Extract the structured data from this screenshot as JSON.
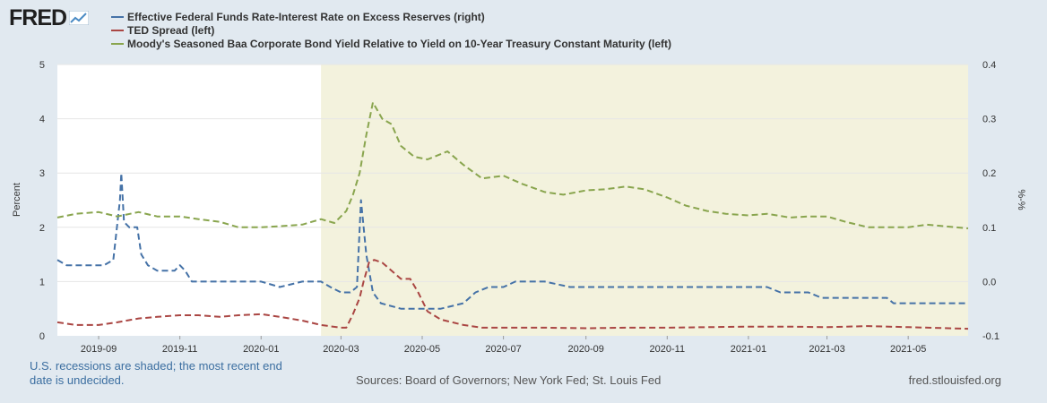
{
  "header": {
    "logo_text": "FRED",
    "logo_icon": "trend-graph-icon"
  },
  "legend": [
    {
      "label": "Effective Federal Funds Rate-Interest Rate on Excess Reserves (right)",
      "color": "#4572a7"
    },
    {
      "label": "TED Spread (left)",
      "color": "#aa4643"
    },
    {
      "label": "Moody's Seasoned Baa Corporate Bond Yield Relative to Yield on 10-Year Treasury Constant Maturity (left)",
      "color": "#89a54e"
    }
  ],
  "footer": {
    "recession_note": "U.S. recessions are shaded; the most recent end date is undecided.",
    "sources": "Sources: Board of Governors; New York Fed; St. Louis Fed",
    "site": "fred.stlouisfed.org"
  },
  "chart_data": {
    "type": "line",
    "x_start": "2019-08-01",
    "x_end": "2021-06-15",
    "x_ticks": [
      "2019-09",
      "2019-11",
      "2020-01",
      "2020-03",
      "2020-05",
      "2020-07",
      "2020-09",
      "2020-11",
      "2021-01",
      "2021-03",
      "2021-05"
    ],
    "left_axis": {
      "label": "Percent",
      "ticks": [
        "0",
        "1",
        "2",
        "3",
        "4",
        "5"
      ],
      "ylim": [
        0,
        5
      ]
    },
    "right_axis": {
      "label": "%-%",
      "ticks": [
        "-0.1",
        "0.0",
        "0.1",
        "0.2",
        "0.3",
        "0.4"
      ],
      "ylim": [
        -0.1,
        0.4
      ]
    },
    "grid": true,
    "recession": {
      "start": "2020-02-15",
      "end": "2021-06-15",
      "color": "#f3f2dd"
    },
    "series": [
      {
        "name": "Effective Federal Funds Rate-Interest Rate on Excess Reserves",
        "axis": "right",
        "color": "#4572a7",
        "points": [
          [
            "2019-08-01",
            0.04
          ],
          [
            "2019-08-08",
            0.03
          ],
          [
            "2019-08-15",
            0.03
          ],
          [
            "2019-08-22",
            0.03
          ],
          [
            "2019-08-29",
            0.03
          ],
          [
            "2019-09-05",
            0.03
          ],
          [
            "2019-09-12",
            0.04
          ],
          [
            "2019-09-17",
            0.15
          ],
          [
            "2019-09-18",
            0.2
          ],
          [
            "2019-09-20",
            0.11
          ],
          [
            "2019-09-24",
            0.1
          ],
          [
            "2019-09-30",
            0.1
          ],
          [
            "2019-10-03",
            0.05
          ],
          [
            "2019-10-08",
            0.03
          ],
          [
            "2019-10-15",
            0.02
          ],
          [
            "2019-10-22",
            0.02
          ],
          [
            "2019-10-28",
            0.02
          ],
          [
            "2019-11-01",
            0.03
          ],
          [
            "2019-11-05",
            0.02
          ],
          [
            "2019-11-10",
            0.0
          ],
          [
            "2019-12-01",
            0.0
          ],
          [
            "2019-12-15",
            0.0
          ],
          [
            "2020-01-01",
            0.0
          ],
          [
            "2020-01-15",
            -0.01
          ],
          [
            "2020-02-01",
            0.0
          ],
          [
            "2020-02-15",
            0.0
          ],
          [
            "2020-02-22",
            -0.01
          ],
          [
            "2020-03-01",
            -0.02
          ],
          [
            "2020-03-08",
            -0.02
          ],
          [
            "2020-03-13",
            -0.01
          ],
          [
            "2020-03-16",
            0.15
          ],
          [
            "2020-03-20",
            0.05
          ],
          [
            "2020-03-25",
            -0.02
          ],
          [
            "2020-03-31",
            -0.04
          ],
          [
            "2020-04-15",
            -0.05
          ],
          [
            "2020-05-01",
            -0.05
          ],
          [
            "2020-05-15",
            -0.05
          ],
          [
            "2020-06-01",
            -0.04
          ],
          [
            "2020-06-10",
            -0.02
          ],
          [
            "2020-06-20",
            -0.01
          ],
          [
            "2020-07-01",
            -0.01
          ],
          [
            "2020-07-10",
            0.0
          ],
          [
            "2020-07-20",
            0.0
          ],
          [
            "2020-08-01",
            0.0
          ],
          [
            "2020-08-20",
            -0.01
          ],
          [
            "2020-09-15",
            -0.01
          ],
          [
            "2020-10-15",
            -0.01
          ],
          [
            "2020-11-15",
            -0.01
          ],
          [
            "2020-12-15",
            -0.01
          ],
          [
            "2021-01-15",
            -0.01
          ],
          [
            "2021-01-25",
            -0.02
          ],
          [
            "2021-02-15",
            -0.02
          ],
          [
            "2021-02-25",
            -0.03
          ],
          [
            "2021-03-15",
            -0.03
          ],
          [
            "2021-04-01",
            -0.03
          ],
          [
            "2021-04-15",
            -0.03
          ],
          [
            "2021-04-20",
            -0.04
          ],
          [
            "2021-05-01",
            -0.04
          ],
          [
            "2021-05-15",
            -0.04
          ],
          [
            "2021-06-15",
            -0.04
          ]
        ]
      },
      {
        "name": "TED Spread",
        "axis": "left",
        "color": "#aa4643",
        "points": [
          [
            "2019-08-01",
            0.25
          ],
          [
            "2019-08-15",
            0.2
          ],
          [
            "2019-09-01",
            0.2
          ],
          [
            "2019-09-15",
            0.25
          ],
          [
            "2019-10-01",
            0.32
          ],
          [
            "2019-10-15",
            0.35
          ],
          [
            "2019-11-01",
            0.38
          ],
          [
            "2019-11-15",
            0.38
          ],
          [
            "2019-12-01",
            0.35
          ],
          [
            "2019-12-15",
            0.38
          ],
          [
            "2020-01-01",
            0.4
          ],
          [
            "2020-01-15",
            0.35
          ],
          [
            "2020-02-01",
            0.28
          ],
          [
            "2020-02-15",
            0.2
          ],
          [
            "2020-03-01",
            0.15
          ],
          [
            "2020-03-05",
            0.15
          ],
          [
            "2020-03-10",
            0.4
          ],
          [
            "2020-03-15",
            0.7
          ],
          [
            "2020-03-18",
            1.0
          ],
          [
            "2020-03-22",
            1.35
          ],
          [
            "2020-03-26",
            1.4
          ],
          [
            "2020-04-01",
            1.35
          ],
          [
            "2020-04-08",
            1.2
          ],
          [
            "2020-04-15",
            1.05
          ],
          [
            "2020-04-22",
            1.05
          ],
          [
            "2020-04-28",
            0.8
          ],
          [
            "2020-05-05",
            0.45
          ],
          [
            "2020-05-15",
            0.3
          ],
          [
            "2020-06-01",
            0.2
          ],
          [
            "2020-06-15",
            0.15
          ],
          [
            "2020-07-01",
            0.15
          ],
          [
            "2020-08-01",
            0.15
          ],
          [
            "2020-09-01",
            0.14
          ],
          [
            "2020-10-01",
            0.15
          ],
          [
            "2020-11-01",
            0.15
          ],
          [
            "2020-12-01",
            0.16
          ],
          [
            "2021-01-01",
            0.17
          ],
          [
            "2021-02-01",
            0.17
          ],
          [
            "2021-03-01",
            0.16
          ],
          [
            "2021-04-01",
            0.18
          ],
          [
            "2021-05-01",
            0.16
          ],
          [
            "2021-06-15",
            0.13
          ]
        ]
      },
      {
        "name": "Moody's Seasoned Baa Corporate Bond Yield Relative to Yield on 10-Year Treasury Constant Maturity",
        "axis": "left",
        "color": "#89a54e",
        "points": [
          [
            "2019-08-01",
            2.18
          ],
          [
            "2019-08-15",
            2.25
          ],
          [
            "2019-09-01",
            2.28
          ],
          [
            "2019-09-15",
            2.2
          ],
          [
            "2019-10-01",
            2.28
          ],
          [
            "2019-10-15",
            2.2
          ],
          [
            "2019-11-01",
            2.2
          ],
          [
            "2019-11-15",
            2.15
          ],
          [
            "2019-12-01",
            2.1
          ],
          [
            "2019-12-15",
            2.0
          ],
          [
            "2020-01-01",
            2.0
          ],
          [
            "2020-01-15",
            2.02
          ],
          [
            "2020-02-01",
            2.05
          ],
          [
            "2020-02-15",
            2.15
          ],
          [
            "2020-02-25",
            2.08
          ],
          [
            "2020-03-05",
            2.3
          ],
          [
            "2020-03-10",
            2.6
          ],
          [
            "2020-03-15",
            3.0
          ],
          [
            "2020-03-20",
            3.7
          ],
          [
            "2020-03-25",
            4.3
          ],
          [
            "2020-04-01",
            4.0
          ],
          [
            "2020-04-08",
            3.9
          ],
          [
            "2020-04-15",
            3.5
          ],
          [
            "2020-04-25",
            3.3
          ],
          [
            "2020-05-05",
            3.25
          ],
          [
            "2020-05-20",
            3.4
          ],
          [
            "2020-06-01",
            3.15
          ],
          [
            "2020-06-15",
            2.9
          ],
          [
            "2020-07-01",
            2.95
          ],
          [
            "2020-07-15",
            2.8
          ],
          [
            "2020-08-01",
            2.65
          ],
          [
            "2020-08-15",
            2.6
          ],
          [
            "2020-09-01",
            2.68
          ],
          [
            "2020-09-15",
            2.7
          ],
          [
            "2020-10-01",
            2.75
          ],
          [
            "2020-10-15",
            2.7
          ],
          [
            "2020-11-01",
            2.55
          ],
          [
            "2020-11-15",
            2.4
          ],
          [
            "2020-12-01",
            2.3
          ],
          [
            "2020-12-15",
            2.25
          ],
          [
            "2021-01-01",
            2.22
          ],
          [
            "2021-01-15",
            2.25
          ],
          [
            "2021-02-01",
            2.18
          ],
          [
            "2021-02-15",
            2.2
          ],
          [
            "2021-03-01",
            2.2
          ],
          [
            "2021-03-15",
            2.1
          ],
          [
            "2021-04-01",
            2.0
          ],
          [
            "2021-04-15",
            2.0
          ],
          [
            "2021-05-01",
            2.0
          ],
          [
            "2021-05-15",
            2.05
          ],
          [
            "2021-06-15",
            1.98
          ]
        ]
      }
    ]
  }
}
